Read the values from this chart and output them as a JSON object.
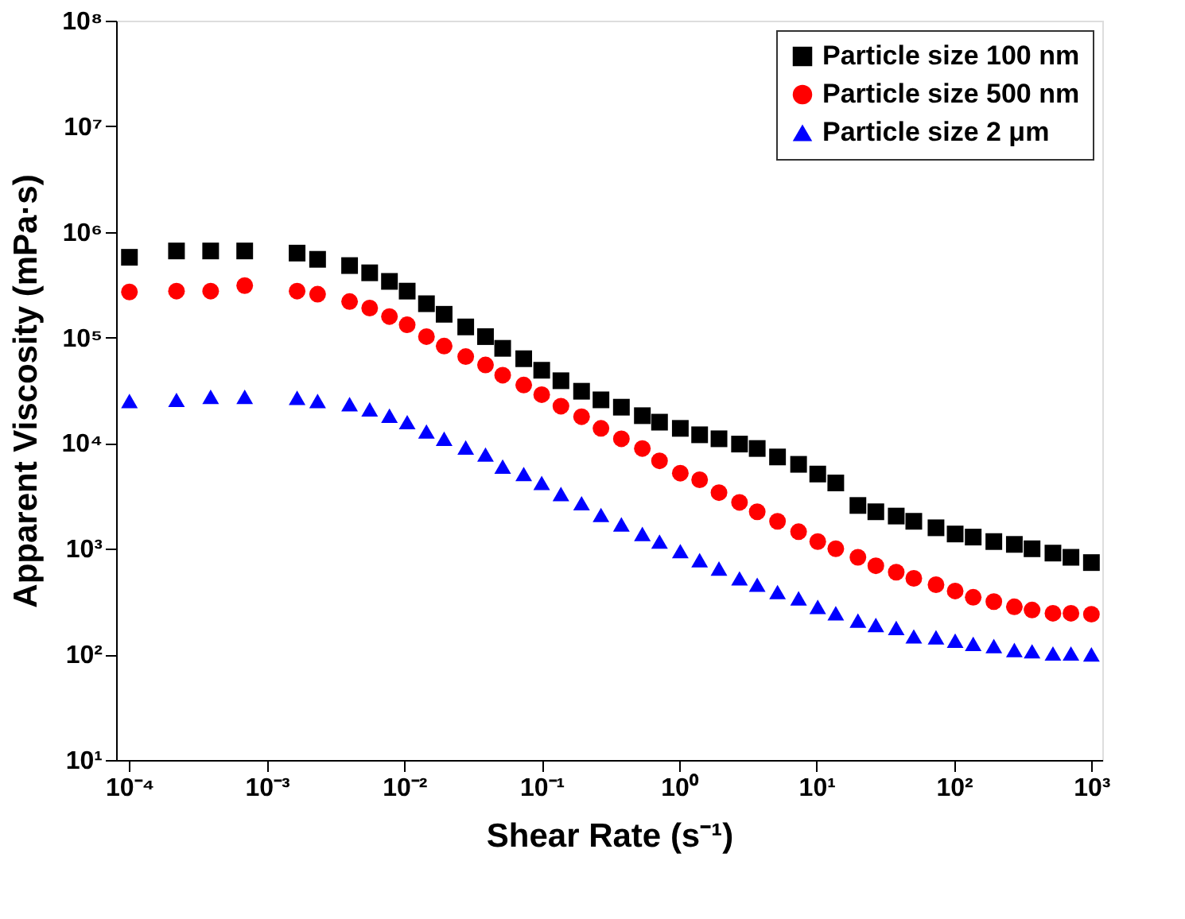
{
  "chart_data": {
    "type": "scatter",
    "xlabel": "Shear Rate (s⁻¹)",
    "ylabel": "Apparent Viscosity (mPa·s)",
    "log": "xy",
    "grid": false,
    "legend": "top right",
    "xlim": [
      8e-05,
      1200
    ],
    "ylim": [
      10,
      100000000
    ],
    "xticks": [
      {
        "value": 0.0001,
        "label": "10⁻⁴"
      },
      {
        "value": 0.001,
        "label": "10⁻³"
      },
      {
        "value": 0.01,
        "label": "10⁻²"
      },
      {
        "value": 0.1,
        "label": "10⁻¹"
      },
      {
        "value": 1,
        "label": "10⁰"
      },
      {
        "value": 10,
        "label": "10¹"
      },
      {
        "value": 100,
        "label": "10²"
      },
      {
        "value": 1000,
        "label": "10³"
      }
    ],
    "yticks": [
      {
        "value": 10,
        "label": "10¹"
      },
      {
        "value": 100,
        "label": "10²"
      },
      {
        "value": 1000,
        "label": "10³"
      },
      {
        "value": 10000,
        "label": "10⁴"
      },
      {
        "value": 100000,
        "label": "10⁵"
      },
      {
        "value": 1000000,
        "label": "10⁶"
      },
      {
        "value": 10000000,
        "label": "10⁷"
      },
      {
        "value": 100000000,
        "label": "10⁸"
      }
    ],
    "x": [
      0.0001,
      0.00022,
      0.00039,
      0.00069,
      0.00166,
      0.00234,
      0.004,
      0.0056,
      0.0078,
      0.0105,
      0.0145,
      0.0195,
      0.028,
      0.039,
      0.052,
      0.074,
      0.1,
      0.138,
      0.195,
      0.27,
      0.38,
      0.54,
      0.72,
      1.02,
      1.41,
      1.95,
      2.75,
      3.7,
      5.2,
      7.4,
      10.2,
      13.8,
      20,
      27,
      38,
      51,
      74,
      102,
      138,
      195,
      275,
      370,
      525,
      710,
      1000
    ],
    "series": [
      {
        "name": "Particle size 100 nm",
        "color": "#000000",
        "marker": "square",
        "values": [
          575000,
          660000,
          660000,
          660000,
          630000,
          550000,
          480000,
          410000,
          340000,
          275000,
          209000,
          166000,
          126000,
          102000,
          79000,
          63000,
          49000,
          39000,
          31000,
          25700,
          21900,
          18200,
          15800,
          13800,
          12000,
          11000,
          9800,
          8900,
          7400,
          6300,
          5100,
          4200,
          2570,
          2240,
          2040,
          1820,
          1580,
          1380,
          1290,
          1170,
          1100,
          1000,
          910,
          830,
          740
        ]
      },
      {
        "name": "Particle size 500 nm",
        "color": "#ff0000",
        "marker": "circle",
        "values": [
          270000,
          275000,
          275000,
          310000,
          275000,
          257000,
          219000,
          190000,
          158000,
          132000,
          102000,
          83000,
          66000,
          55000,
          44000,
          35500,
          28800,
          22400,
          17800,
          13800,
          11000,
          8900,
          6800,
          5200,
          4500,
          3400,
          2750,
          2240,
          1820,
          1450,
          1170,
          1000,
          830,
          690,
          600,
          525,
          457,
          398,
          347,
          316,
          282,
          263,
          245,
          245,
          240
        ]
      },
      {
        "name": "Particle size 2 μm",
        "color": "#0000ff",
        "marker": "triangle",
        "values": [
          25100,
          25700,
          27500,
          27500,
          26900,
          25100,
          23400,
          20900,
          18200,
          15800,
          12900,
          11000,
          9100,
          7800,
          6000,
          5100,
          4200,
          3300,
          2700,
          2090,
          1700,
          1380,
          1170,
          950,
          780,
          650,
          525,
          457,
          389,
          339,
          282,
          245,
          209,
          190,
          178,
          148,
          145,
          135,
          126,
          120,
          110,
          107,
          102,
          102,
          100
        ]
      }
    ]
  }
}
